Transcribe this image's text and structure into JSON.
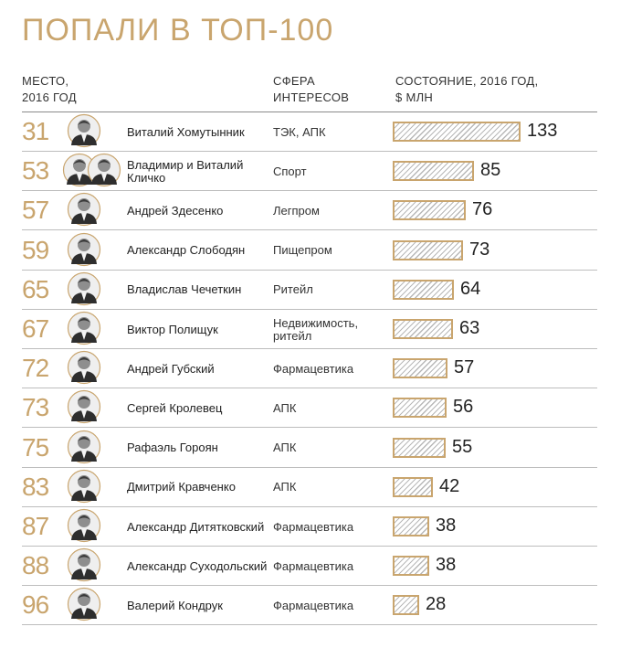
{
  "title": "ПОПАЛИ В ТОП-100",
  "headers": {
    "rank": [
      "МЕСТО,",
      "2016 ГОД"
    ],
    "sphere": [
      "СФЕРА",
      "ИНТЕРЕСОВ"
    ],
    "wealth": [
      "СОСТОЯНИЕ, 2016 ГОД,",
      "$ МЛН"
    ]
  },
  "chart_data": {
    "type": "bar",
    "title": "ПОПАЛИ В ТОП-100",
    "ylabel": "СОСТОЯНИЕ, 2016 ГОД, $ МЛН",
    "xlim": [
      0,
      133
    ],
    "rows": [
      {
        "rank": "31",
        "name": "Виталий Хомутынник",
        "sphere": "ТЭК, АПК",
        "value": 133,
        "photos": 1
      },
      {
        "rank": "53",
        "name": "Владимир и Виталий Кличко",
        "sphere": "Спорт",
        "value": 85,
        "photos": 2
      },
      {
        "rank": "57",
        "name": "Андрей Здесенко",
        "sphere": "Легпром",
        "value": 76,
        "photos": 1
      },
      {
        "rank": "59",
        "name": "Александр Слободян",
        "sphere": "Пищепром",
        "value": 73,
        "photos": 1
      },
      {
        "rank": "65",
        "name": "Владислав Чечеткин",
        "sphere": "Ритейл",
        "value": 64,
        "photos": 1
      },
      {
        "rank": "67",
        "name": "Виктор Полищук",
        "sphere": "Недвижимость, ритейл",
        "value": 63,
        "photos": 1
      },
      {
        "rank": "72",
        "name": "Андрей Губский",
        "sphere": "Фармацевтика",
        "value": 57,
        "photos": 1
      },
      {
        "rank": "73",
        "name": "Сергей Кролевец",
        "sphere": "АПК",
        "value": 56,
        "photos": 1
      },
      {
        "rank": "75",
        "name": "Рафаэль Гороян",
        "sphere": "АПК",
        "value": 55,
        "photos": 1
      },
      {
        "rank": "83",
        "name": "Дмитрий Кравченко",
        "sphere": "АПК",
        "value": 42,
        "photos": 1
      },
      {
        "rank": "87",
        "name": "Александр Дитятковский",
        "sphere": "Фармацевтика",
        "value": 38,
        "photos": 1
      },
      {
        "rank": "88",
        "name": "Александр Суходольский",
        "sphere": "Фармацевтика",
        "value": 38,
        "photos": 1
      },
      {
        "rank": "96",
        "name": "Валерий Кондрук",
        "sphere": "Фармацевтика",
        "value": 28,
        "photos": 1
      }
    ]
  },
  "colors": {
    "accent": "#c9a56e",
    "text": "#222222",
    "hatch": "#b8b8b8"
  }
}
